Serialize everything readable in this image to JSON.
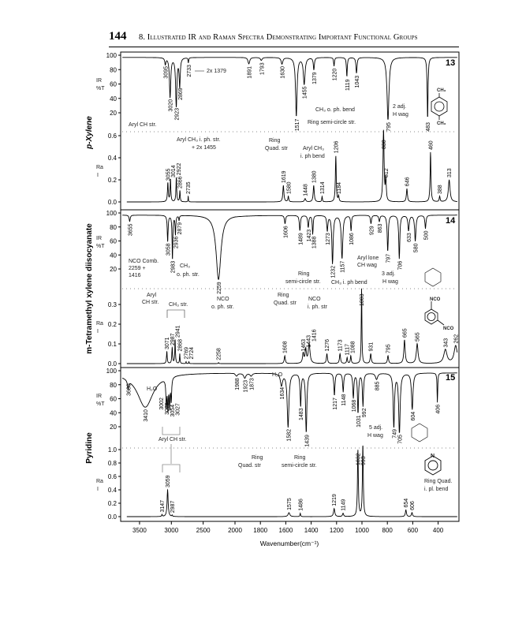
{
  "header": {
    "page_number": "144",
    "title": "8. Illustrated IR and Raman Spectra Demonstrating Important Functional Groups"
  },
  "axis": {
    "xlabel": "Wavenumber(cm⁻¹)",
    "xticks": [
      3500,
      3000,
      2500,
      2000,
      1800,
      1600,
      1400,
      1200,
      1000,
      800,
      600,
      400
    ],
    "ir_ylabel": "IR",
    "ir_units": "%T",
    "ra_ylabel": "Ra",
    "ra_units": "I",
    "ir_ticks": [
      100,
      80,
      60,
      40,
      20
    ]
  },
  "chart_data": [
    {
      "type": "line",
      "id": "13",
      "compound": "p-Xylene",
      "xlabel": "Wavenumber(cm⁻¹)",
      "ir": {
        "ylim": [
          0,
          100
        ],
        "peaks": [
          [
            3095,
            88,
            10
          ],
          [
            3020,
            42,
            12
          ],
          [
            2923,
            30,
            12
          ],
          [
            2869,
            58,
            10
          ],
          [
            2733,
            90,
            6
          ],
          [
            1891,
            88,
            8
          ],
          [
            1793,
            93,
            8
          ],
          [
            1630,
            88,
            8
          ],
          [
            1517,
            15,
            7
          ],
          [
            1455,
            60,
            8
          ],
          [
            1379,
            80,
            5
          ],
          [
            1220,
            85,
            4
          ],
          [
            1119,
            70,
            4
          ],
          [
            1043,
            75,
            5
          ],
          [
            795,
            10,
            9
          ],
          [
            483,
            10,
            4
          ]
        ]
      },
      "raman": {
        "ylim": [
          0,
          0.6
        ],
        "yticks": [
          0.6,
          0.4,
          0.2,
          0.0
        ],
        "peaks": [
          [
            3055,
            0.17,
            8
          ],
          [
            3014,
            0.2,
            7
          ],
          [
            2922,
            0.22,
            7
          ],
          [
            2866,
            0.1,
            6
          ],
          [
            2735,
            0.05,
            4
          ],
          [
            1619,
            0.15,
            5
          ],
          [
            1580,
            0.05,
            4
          ],
          [
            1448,
            0.03,
            6
          ],
          [
            1380,
            0.15,
            5
          ],
          [
            1314,
            0.05,
            3
          ],
          [
            1206,
            0.42,
            4
          ],
          [
            1184,
            0.05,
            4
          ],
          [
            830,
            0.65,
            5
          ],
          [
            812,
            0.2,
            4
          ],
          [
            646,
            0.12,
            5
          ],
          [
            460,
            0.45,
            4
          ],
          [
            388,
            0.05,
            4
          ],
          [
            313,
            0.2,
            8
          ]
        ]
      }
    },
    {
      "type": "line",
      "id": "14",
      "compound": "m-Tetramethyl xylene diisocyanate",
      "xlabel": "Wavenumber(cm⁻¹)",
      "ir": {
        "ylim": [
          0,
          100
        ],
        "peaks": [
          [
            3655,
            88,
            10
          ],
          [
            3058,
            60,
            8
          ],
          [
            2983,
            35,
            7
          ],
          [
            2936,
            70,
            7
          ],
          [
            2879,
            90,
            6
          ],
          [
            2259,
            5,
            45
          ],
          [
            1606,
            85,
            5
          ],
          [
            1489,
            75,
            5
          ],
          [
            1423,
            80,
            5
          ],
          [
            1388,
            70,
            4
          ],
          [
            1273,
            75,
            5
          ],
          [
            1232,
            28,
            6
          ],
          [
            1157,
            35,
            7
          ],
          [
            1086,
            75,
            4
          ],
          [
            929,
            85,
            5
          ],
          [
            863,
            88,
            5
          ],
          [
            797,
            45,
            5
          ],
          [
            706,
            35,
            5
          ],
          [
            633,
            75,
            6
          ],
          [
            580,
            60,
            6
          ],
          [
            500,
            78,
            5
          ]
        ]
      },
      "raman": {
        "ylim": [
          0,
          0.3
        ],
        "yticks": [
          0.3,
          0.2,
          0.1,
          0.0
        ],
        "peaks": [
          [
            3071,
            0.06,
            7
          ],
          [
            2987,
            0.08,
            7
          ],
          [
            2941,
            0.12,
            6
          ],
          [
            2868,
            0.05,
            5
          ],
          [
            2769,
            0.01,
            4
          ],
          [
            2724,
            0.01,
            4
          ],
          [
            2258,
            0.005,
            6
          ],
          [
            1608,
            0.04,
            5
          ],
          [
            1463,
            0.05,
            6
          ],
          [
            1443,
            0.07,
            6
          ],
          [
            1416,
            0.1,
            8
          ],
          [
            1276,
            0.05,
            5
          ],
          [
            1173,
            0.05,
            5
          ],
          [
            1117,
            0.03,
            4
          ],
          [
            1088,
            0.04,
            4
          ],
          [
            1003,
            0.38,
            3
          ],
          [
            931,
            0.05,
            5
          ],
          [
            795,
            0.04,
            5
          ],
          [
            665,
            0.12,
            6
          ],
          [
            565,
            0.1,
            8
          ],
          [
            343,
            0.07,
            15
          ],
          [
            262,
            0.09,
            15
          ]
        ]
      }
    },
    {
      "type": "line",
      "id": "15",
      "compound": "Pyridine",
      "xlabel": "Wavenumber(cm⁻¹)",
      "ir": {
        "ylim": [
          0,
          100
        ],
        "peaks": [
          [
            3680,
            85,
            12
          ],
          [
            3410,
            48,
            150
          ],
          [
            3079,
            58,
            8
          ],
          [
            3054,
            55,
            8
          ],
          [
            3027,
            57,
            8
          ],
          [
            3002,
            65,
            8
          ],
          [
            1988,
            93,
            10
          ],
          [
            1923,
            90,
            10
          ],
          [
            1873,
            93,
            10
          ],
          [
            1634,
            80,
            10
          ],
          [
            1582,
            20,
            8
          ],
          [
            1483,
            50,
            5
          ],
          [
            1439,
            12,
            6
          ],
          [
            1217,
            65,
            5
          ],
          [
            1148,
            70,
            5
          ],
          [
            1068,
            62,
            5
          ],
          [
            1031,
            40,
            5
          ],
          [
            992,
            50,
            5
          ],
          [
            885,
            88,
            10
          ],
          [
            749,
            20,
            6
          ],
          [
            705,
            12,
            7
          ],
          [
            604,
            45,
            7
          ],
          [
            406,
            55,
            3
          ]
        ]
      },
      "raman": {
        "ylim": [
          0,
          1.0
        ],
        "yticks": [
          1.0,
          0.8,
          0.6,
          0.4,
          0.2,
          0.0
        ],
        "peaks": [
          [
            3147,
            0.03,
            6
          ],
          [
            3059,
            0.4,
            10
          ],
          [
            2987,
            0.02,
            5
          ],
          [
            1575,
            0.06,
            8
          ],
          [
            1486,
            0.05,
            3
          ],
          [
            1219,
            0.12,
            6
          ],
          [
            1149,
            0.05,
            5
          ],
          [
            1032,
            1.0,
            4
          ],
          [
            993,
            1.1,
            4
          ],
          [
            654,
            0.1,
            5
          ],
          [
            606,
            0.06,
            5
          ]
        ]
      }
    }
  ],
  "annotations": {
    "p13": {
      "a1": "2x 1379",
      "a2": "Aryl CH str.",
      "a3": "CH₃ o. ph. bend",
      "a4": "Ring semi-circle str.",
      "a5": "2 adj.",
      "a6": "H wag",
      "a7": "Aryl CH₃ i. ph. str.",
      "a8": "+ 2x 1455",
      "a9": "Ring",
      "a10": "Quad. str",
      "a11": "Aryl CH₃",
      "a12": "i. ph bend",
      "s1": "CH₃",
      "s2": "CH₃"
    },
    "p14": {
      "a1": "NCO Comb.",
      "a2": "2259 +",
      "a3": "1416",
      "a4": "CH₃",
      "a5": "o. ph. str.",
      "a6": "Ring",
      "a7": "semi-circle str.",
      "a8": "CH₃ i. ph bend",
      "a9": "Aryl lone",
      "a10": "CH wag",
      "a11": "3 adj.",
      "a12": "H wag",
      "a13": "Aryl",
      "a14": "CH str.",
      "a15": "CH₃ str.",
      "a16": "NCO",
      "a17": "o. ph. str.",
      "a18": "Ring",
      "a19": "Quad. str",
      "a20": "NCO",
      "a21": "i. ph. str",
      "s1": "NCO",
      "s2": "NCO"
    },
    "p15": {
      "a1": "H₂O",
      "a2": "H₂O",
      "a3": "Aryl CH str.",
      "a4": "Ring",
      "a5": "Quad. str",
      "a6": "Ring",
      "a7": "semi-circle str.",
      "a8": "5 adj.",
      "a9": "H wag",
      "a10": "Ring Quad.",
      "a11": "i. pl. bend",
      "s1": "N"
    }
  },
  "colors": {
    "line": "#000000",
    "text": "#222222",
    "dotted": "#666666"
  }
}
